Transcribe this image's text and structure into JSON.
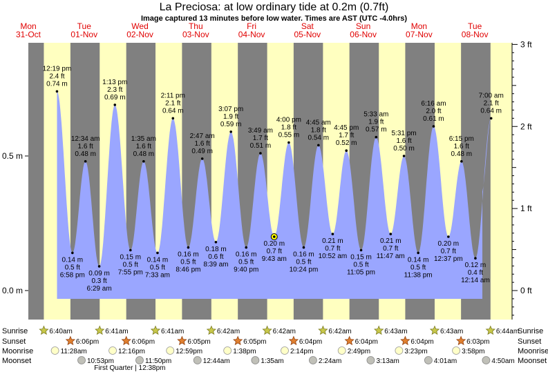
{
  "title": "La Preciosa: at low  ordinary tide at 0.2m (0.7ft)",
  "subtitle": "Image captured 13 minutes before low water. Times are AST (UTC -4.0hrs)",
  "colors": {
    "night": "#808080",
    "day": "#ffffc0",
    "water": "#9aa6ff",
    "day_label": "#e00000"
  },
  "chart_data": {
    "type": "area",
    "title": "La Preciosa: at low  ordinary tide at 0.2m (0.7ft)",
    "y_left": {
      "unit": "m",
      "ticks": [
        {
          "v": 0.0,
          "label": "0.0 m"
        },
        {
          "v": 0.5,
          "label": "0.5 m"
        }
      ]
    },
    "y_right": {
      "unit": "ft",
      "ticks": [
        {
          "v": 0,
          "label": "0 ft"
        },
        {
          "v": 1,
          "label": "1 ft"
        },
        {
          "v": 2,
          "label": "2 ft"
        },
        {
          "v": 3,
          "label": "3 ft"
        }
      ]
    },
    "ylim_m": [
      -0.04,
      0.95
    ],
    "x_start": "2022-10-31 00:00",
    "x_end": "2022-11-08 16:00",
    "days": [
      {
        "dow": "Mon",
        "date": "31-Oct",
        "t": "2022-10-31 00:00"
      },
      {
        "dow": "Tue",
        "date": "01-Nov",
        "t": "2022-11-01 00:00"
      },
      {
        "dow": "Wed",
        "date": "02-Nov",
        "t": "2022-11-02 00:00"
      },
      {
        "dow": "Thu",
        "date": "03-Nov",
        "t": "2022-11-03 00:00"
      },
      {
        "dow": "Fri",
        "date": "04-Nov",
        "t": "2022-11-04 00:00"
      },
      {
        "dow": "Sat",
        "date": "05-Nov",
        "t": "2022-11-05 00:00"
      },
      {
        "dow": "Sun",
        "date": "06-Nov",
        "t": "2022-11-06 00:00"
      },
      {
        "dow": "Mon",
        "date": "07-Nov",
        "t": "2022-11-07 00:00"
      },
      {
        "dow": "Tue",
        "date": "08-Nov",
        "t": "2022-11-08 00:00"
      }
    ],
    "tides": [
      {
        "t": "2022-10-31 12:19",
        "type": "high",
        "m": 0.74,
        "time": "12:19 pm",
        "ft": "2.4 ft",
        "mlabel": "0.74 m"
      },
      {
        "t": "2022-10-31 18:58",
        "type": "low",
        "m": 0.14,
        "time": "6:58 pm",
        "ft": "0.5 ft",
        "mlabel": "0.14 m"
      },
      {
        "t": "2022-11-01 00:34",
        "type": "high",
        "m": 0.48,
        "time": "12:34 am",
        "ft": "1.6 ft",
        "mlabel": "0.48 m"
      },
      {
        "t": "2022-11-01 06:29",
        "type": "low",
        "m": 0.09,
        "time": "6:29 am",
        "ft": "0.3 ft",
        "mlabel": "0.09 m"
      },
      {
        "t": "2022-11-01 13:13",
        "type": "high",
        "m": 0.69,
        "time": "1:13 pm",
        "ft": "2.3 ft",
        "mlabel": "0.69 m"
      },
      {
        "t": "2022-11-01 19:55",
        "type": "low",
        "m": 0.15,
        "time": "7:55 pm",
        "ft": "0.5 ft",
        "mlabel": "0.15 m"
      },
      {
        "t": "2022-11-02 01:35",
        "type": "high",
        "m": 0.48,
        "time": "1:35 am",
        "ft": "1.6 ft",
        "mlabel": "0.48 m"
      },
      {
        "t": "2022-11-02 07:33",
        "type": "low",
        "m": 0.14,
        "time": "7:33 am",
        "ft": "0.5 ft",
        "mlabel": "0.14 m"
      },
      {
        "t": "2022-11-02 14:11",
        "type": "high",
        "m": 0.64,
        "time": "2:11 pm",
        "ft": "2.1 ft",
        "mlabel": "0.64 m"
      },
      {
        "t": "2022-11-02 20:46",
        "type": "low",
        "m": 0.16,
        "time": "8:46 pm",
        "ft": "0.5 ft",
        "mlabel": "0.16 m"
      },
      {
        "t": "2022-11-03 02:47",
        "type": "high",
        "m": 0.49,
        "time": "2:47 am",
        "ft": "1.6 ft",
        "mlabel": "0.49 m"
      },
      {
        "t": "2022-11-03 08:39",
        "type": "low",
        "m": 0.18,
        "time": "8:39 am",
        "ft": "0.6 ft",
        "mlabel": "0.18 m"
      },
      {
        "t": "2022-11-03 15:07",
        "type": "high",
        "m": 0.59,
        "time": "3:07 pm",
        "ft": "1.9 ft",
        "mlabel": "0.59 m"
      },
      {
        "t": "2022-11-03 21:40",
        "type": "low",
        "m": 0.16,
        "time": "9:40 pm",
        "ft": "0.5 ft",
        "mlabel": "0.16 m"
      },
      {
        "t": "2022-11-04 03:49",
        "type": "high",
        "m": 0.51,
        "time": "3:49 am",
        "ft": "1.7 ft",
        "mlabel": "0.51 m"
      },
      {
        "t": "2022-11-04 09:43",
        "type": "low",
        "m": 0.2,
        "time": "9:43 am",
        "ft": "0.7 ft",
        "mlabel": "0.20 m",
        "current": true
      },
      {
        "t": "2022-11-04 16:00",
        "type": "high",
        "m": 0.55,
        "time": "4:00 pm",
        "ft": "1.8 ft",
        "mlabel": "0.55 m"
      },
      {
        "t": "2022-11-04 22:24",
        "type": "low",
        "m": 0.16,
        "time": "10:24 pm",
        "ft": "0.5 ft",
        "mlabel": "0.16 m"
      },
      {
        "t": "2022-11-05 04:45",
        "type": "high",
        "m": 0.54,
        "time": "4:45 am",
        "ft": "1.8 ft",
        "mlabel": "0.54 m"
      },
      {
        "t": "2022-11-05 10:52",
        "type": "low",
        "m": 0.21,
        "time": "10:52 am",
        "ft": "0.7 ft",
        "mlabel": "0.21 m"
      },
      {
        "t": "2022-11-05 16:45",
        "type": "high",
        "m": 0.52,
        "time": "4:45 pm",
        "ft": "1.7 ft",
        "mlabel": "0.52 m"
      },
      {
        "t": "2022-11-05 23:05",
        "type": "low",
        "m": 0.15,
        "time": "11:05 pm",
        "ft": "0.5 ft",
        "mlabel": "0.15 m"
      },
      {
        "t": "2022-11-06 05:33",
        "type": "high",
        "m": 0.57,
        "time": "5:33 am",
        "ft": "1.9 ft",
        "mlabel": "0.57 m"
      },
      {
        "t": "2022-11-06 11:47",
        "type": "low",
        "m": 0.21,
        "time": "11:47 am",
        "ft": "0.7 ft",
        "mlabel": "0.21 m"
      },
      {
        "t": "2022-11-06 17:31",
        "type": "high",
        "m": 0.5,
        "time": "5:31 pm",
        "ft": "1.6 ft",
        "mlabel": "0.50 m"
      },
      {
        "t": "2022-11-06 23:38",
        "type": "low",
        "m": 0.14,
        "time": "11:38 pm",
        "ft": "0.5 ft",
        "mlabel": "0.14 m"
      },
      {
        "t": "2022-11-07 06:16",
        "type": "high",
        "m": 0.61,
        "time": "6:16 am",
        "ft": "2.0 ft",
        "mlabel": "0.61 m"
      },
      {
        "t": "2022-11-07 12:37",
        "type": "low",
        "m": 0.2,
        "time": "12:37 pm",
        "ft": "0.7 ft",
        "mlabel": "0.20 m"
      },
      {
        "t": "2022-11-07 18:15",
        "type": "high",
        "m": 0.48,
        "time": "6:15 pm",
        "ft": "1.6 ft",
        "mlabel": "0.48 m"
      },
      {
        "t": "2022-11-08 00:14",
        "type": "low",
        "m": 0.12,
        "time": "12:14 am",
        "ft": "0.4 ft",
        "mlabel": "0.12 m"
      },
      {
        "t": "2022-11-08 07:00",
        "type": "high",
        "m": 0.64,
        "time": "7:00 am",
        "ft": "2.1 ft",
        "mlabel": "0.64 m"
      }
    ],
    "sun": [
      {
        "rise": "2022-10-31 06:40",
        "rise_label": "6:40am",
        "set": "2022-10-31 18:06",
        "set_label": "6:06pm"
      },
      {
        "rise": "2022-11-01 06:41",
        "rise_label": "6:41am",
        "set": "2022-11-01 18:06",
        "set_label": "6:06pm"
      },
      {
        "rise": "2022-11-02 06:41",
        "rise_label": "6:41am",
        "set": "2022-11-02 18:05",
        "set_label": "6:05pm"
      },
      {
        "rise": "2022-11-03 06:42",
        "rise_label": "6:42am",
        "set": "2022-11-03 18:05",
        "set_label": "6:05pm"
      },
      {
        "rise": "2022-11-04 06:42",
        "rise_label": "6:42am",
        "set": "2022-11-04 18:04",
        "set_label": "6:04pm"
      },
      {
        "rise": "2022-11-05 06:42",
        "rise_label": "6:42am",
        "set": "2022-11-05 18:04",
        "set_label": "6:04pm"
      },
      {
        "rise": "2022-11-06 06:43",
        "rise_label": "6:43am",
        "set": "2022-11-06 18:04",
        "set_label": "6:04pm"
      },
      {
        "rise": "2022-11-07 06:43",
        "rise_label": "6:43am",
        "set": "2022-11-07 18:03",
        "set_label": "6:03pm"
      },
      {
        "rise": "2022-11-08 06:44",
        "rise_label": "6:44am"
      }
    ],
    "moonrise": [
      {
        "t": "2022-10-31 11:28",
        "label": "11:28am"
      },
      {
        "t": "2022-11-01 12:16",
        "label": "12:16pm"
      },
      {
        "t": "2022-11-02 12:59",
        "label": "12:59pm"
      },
      {
        "t": "2022-11-03 13:38",
        "label": "1:38pm"
      },
      {
        "t": "2022-11-04 14:14",
        "label": "2:14pm"
      },
      {
        "t": "2022-11-05 14:49",
        "label": "2:49pm"
      },
      {
        "t": "2022-11-06 15:23",
        "label": "3:23pm"
      },
      {
        "t": "2022-11-07 15:58",
        "label": "3:58pm"
      }
    ],
    "moonset": [
      {
        "t": "2022-10-31 22:53",
        "label": "10:53pm"
      },
      {
        "t": "2022-11-01 23:50",
        "label": "11:50pm"
      },
      {
        "t": "2022-11-03 00:44",
        "label": "12:44am"
      },
      {
        "t": "2022-11-04 01:35",
        "label": "1:35am"
      },
      {
        "t": "2022-11-05 02:24",
        "label": "2:24am"
      },
      {
        "t": "2022-11-06 03:13",
        "label": "3:13am"
      },
      {
        "t": "2022-11-07 04:01",
        "label": "4:01am"
      },
      {
        "t": "2022-11-08 04:50",
        "label": "4:50am"
      }
    ],
    "moon_phase": {
      "t": "2022-11-01 12:38",
      "label": "First Quarter | 12:38pm"
    },
    "row_labels": {
      "sunrise": "Sunrise",
      "sunset": "Sunset",
      "moonrise": "Moonrise",
      "moonset": "Moonset"
    }
  }
}
